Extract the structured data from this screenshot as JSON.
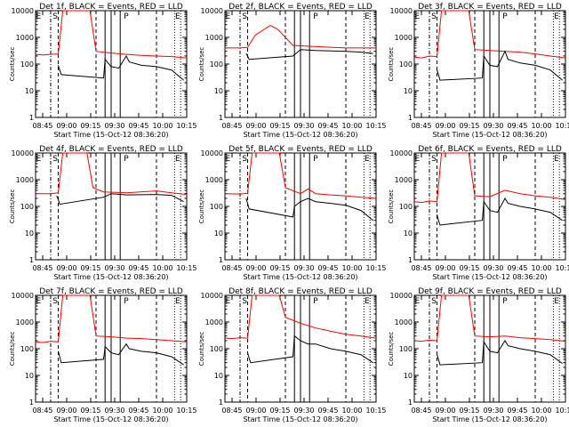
{
  "chart_data": {
    "type": "line",
    "yscale": "log",
    "ylim": [
      1,
      10000
    ],
    "ylabel": "Counts/sec",
    "xlabel": "Start Time (15-Oct-12 08:36:20)",
    "x_tick_labels": [
      "08:45",
      "09:00",
      "09:15",
      "09:30",
      "09:45",
      "10:00",
      "10:15"
    ],
    "y_tick_labels": [
      "1",
      "10",
      "100",
      "1000",
      "10000"
    ],
    "colors": {
      "events": "#000000",
      "lld": "#ff0000"
    },
    "panels": [
      {
        "title": "Det 1f, BLACK = Events, RED = LLD",
        "markers": {
          "S": "S",
          "P": "P",
          "E": "E"
        },
        "lld": [
          [
            0.0,
            230
          ],
          [
            0.05,
            220
          ],
          [
            0.1,
            230
          ],
          [
            0.15,
            240
          ],
          [
            0.18,
            10000
          ],
          [
            0.36,
            10000
          ],
          [
            0.4,
            300
          ],
          [
            0.5,
            260
          ],
          [
            0.6,
            230
          ],
          [
            0.7,
            210
          ],
          [
            0.8,
            200
          ],
          [
            0.9,
            190
          ],
          [
            1.0,
            170
          ]
        ],
        "events": [
          [
            0.15,
            90
          ],
          [
            0.16,
            60
          ],
          [
            0.17,
            40
          ],
          [
            0.45,
            30
          ],
          [
            0.46,
            150
          ],
          [
            0.5,
            80
          ],
          [
            0.55,
            70
          ],
          [
            0.6,
            200
          ],
          [
            0.62,
            120
          ],
          [
            0.7,
            90
          ],
          [
            0.8,
            80
          ],
          [
            0.9,
            60
          ],
          [
            0.98,
            25
          ]
        ]
      },
      {
        "title": "Det 2f, BLACK = Events, RED = LLD",
        "markers": {
          "S": "S",
          "P": "P",
          "E": "E"
        },
        "lld": [
          [
            0.0,
            400
          ],
          [
            0.1,
            400
          ],
          [
            0.15,
            420
          ],
          [
            0.2,
            1200
          ],
          [
            0.3,
            2800
          ],
          [
            0.35,
            2000
          ],
          [
            0.45,
            500
          ],
          [
            0.6,
            450
          ],
          [
            0.8,
            400
          ],
          [
            1.0,
            400
          ]
        ],
        "events": [
          [
            0.14,
            250
          ],
          [
            0.15,
            200
          ],
          [
            0.16,
            150
          ],
          [
            0.45,
            200
          ],
          [
            0.5,
            350
          ],
          [
            0.6,
            320
          ],
          [
            0.8,
            300
          ],
          [
            0.9,
            280
          ],
          [
            0.98,
            250
          ]
        ]
      },
      {
        "title": "Det 3f, BLACK = Events, RED = LLD",
        "markers": {
          "S": "S",
          "P": "P",
          "E": "E"
        },
        "lld": [
          [
            0.0,
            180
          ],
          [
            0.05,
            170
          ],
          [
            0.1,
            200
          ],
          [
            0.15,
            190
          ],
          [
            0.18,
            10000
          ],
          [
            0.36,
            10000
          ],
          [
            0.4,
            350
          ],
          [
            0.5,
            320
          ],
          [
            0.6,
            300
          ],
          [
            0.7,
            280
          ],
          [
            0.8,
            240
          ],
          [
            0.9,
            200
          ],
          [
            1.0,
            170
          ]
        ],
        "events": [
          [
            0.15,
            60
          ],
          [
            0.16,
            40
          ],
          [
            0.17,
            25
          ],
          [
            0.45,
            30
          ],
          [
            0.46,
            200
          ],
          [
            0.5,
            90
          ],
          [
            0.55,
            80
          ],
          [
            0.6,
            300
          ],
          [
            0.62,
            150
          ],
          [
            0.7,
            110
          ],
          [
            0.8,
            90
          ],
          [
            0.9,
            60
          ],
          [
            0.98,
            25
          ]
        ]
      },
      {
        "title": "Det 4f, BLACK = Events, RED = LLD",
        "markers": {
          "S": "S",
          "P": "P",
          "E": "E"
        },
        "lld": [
          [
            0.0,
            300
          ],
          [
            0.1,
            300
          ],
          [
            0.15,
            320
          ],
          [
            0.18,
            10000
          ],
          [
            0.34,
            10000
          ],
          [
            0.38,
            500
          ],
          [
            0.45,
            350
          ],
          [
            0.6,
            320
          ],
          [
            0.8,
            380
          ],
          [
            0.9,
            320
          ],
          [
            1.0,
            280
          ]
        ],
        "events": [
          [
            0.14,
            250
          ],
          [
            0.15,
            180
          ],
          [
            0.16,
            120
          ],
          [
            0.45,
            220
          ],
          [
            0.5,
            300
          ],
          [
            0.6,
            270
          ],
          [
            0.8,
            280
          ],
          [
            0.9,
            260
          ],
          [
            0.98,
            150
          ]
        ]
      },
      {
        "title": "Det 5f, BLACK = Events, RED = LLD",
        "markers": {
          "S": "S",
          "P": "P",
          "E": "E"
        },
        "lld": [
          [
            0.0,
            300
          ],
          [
            0.1,
            290
          ],
          [
            0.15,
            310
          ],
          [
            0.18,
            10000
          ],
          [
            0.36,
            10000
          ],
          [
            0.4,
            500
          ],
          [
            0.5,
            300
          ],
          [
            0.55,
            450
          ],
          [
            0.6,
            300
          ],
          [
            0.7,
            270
          ],
          [
            0.8,
            250
          ],
          [
            0.9,
            220
          ],
          [
            1.0,
            200
          ]
        ],
        "events": [
          [
            0.14,
            200
          ],
          [
            0.15,
            130
          ],
          [
            0.16,
            80
          ],
          [
            0.45,
            40
          ],
          [
            0.46,
            100
          ],
          [
            0.5,
            150
          ],
          [
            0.55,
            200
          ],
          [
            0.6,
            150
          ],
          [
            0.7,
            130
          ],
          [
            0.8,
            110
          ],
          [
            0.9,
            70
          ],
          [
            0.98,
            30
          ]
        ]
      },
      {
        "title": "Det 6f, BLACK = Events, RED = LLD",
        "markers": {
          "S": "S",
          "P": "P",
          "E": "E"
        },
        "lld": [
          [
            0.0,
            150
          ],
          [
            0.05,
            140
          ],
          [
            0.1,
            160
          ],
          [
            0.15,
            150
          ],
          [
            0.18,
            10000
          ],
          [
            0.36,
            10000
          ],
          [
            0.4,
            250
          ],
          [
            0.5,
            230
          ],
          [
            0.6,
            400
          ],
          [
            0.7,
            300
          ],
          [
            0.8,
            250
          ],
          [
            0.9,
            220
          ],
          [
            1.0,
            180
          ]
        ],
        "events": [
          [
            0.15,
            50
          ],
          [
            0.16,
            30
          ],
          [
            0.17,
            20
          ],
          [
            0.45,
            30
          ],
          [
            0.46,
            150
          ],
          [
            0.5,
            70
          ],
          [
            0.55,
            60
          ],
          [
            0.6,
            200
          ],
          [
            0.62,
            130
          ],
          [
            0.7,
            100
          ],
          [
            0.8,
            80
          ],
          [
            0.9,
            60
          ],
          [
            0.98,
            30
          ]
        ]
      },
      {
        "title": "Det 7f, BLACK = Events, RED = LLD",
        "markers": {
          "S": "S",
          "P": "P",
          "E": "E"
        },
        "lld": [
          [
            0.0,
            180
          ],
          [
            0.05,
            170
          ],
          [
            0.1,
            190
          ],
          [
            0.15,
            180
          ],
          [
            0.18,
            10000
          ],
          [
            0.36,
            10000
          ],
          [
            0.4,
            300
          ],
          [
            0.5,
            280
          ],
          [
            0.6,
            250
          ],
          [
            0.7,
            240
          ],
          [
            0.8,
            220
          ],
          [
            0.9,
            200
          ],
          [
            1.0,
            180
          ]
        ],
        "events": [
          [
            0.15,
            80
          ],
          [
            0.16,
            50
          ],
          [
            0.17,
            30
          ],
          [
            0.45,
            40
          ],
          [
            0.46,
            120
          ],
          [
            0.5,
            70
          ],
          [
            0.55,
            60
          ],
          [
            0.6,
            150
          ],
          [
            0.62,
            100
          ],
          [
            0.7,
            80
          ],
          [
            0.8,
            70
          ],
          [
            0.9,
            50
          ],
          [
            0.98,
            25
          ]
        ]
      },
      {
        "title": "Det 8f, BLACK = Events, RED = LLD",
        "markers": {
          "S": "S",
          "P": "P",
          "E": "E"
        },
        "lld": [
          [
            0.0,
            250
          ],
          [
            0.05,
            240
          ],
          [
            0.1,
            260
          ],
          [
            0.15,
            250
          ],
          [
            0.18,
            10000
          ],
          [
            0.36,
            10000
          ],
          [
            0.4,
            1500
          ],
          [
            0.5,
            900
          ],
          [
            0.6,
            600
          ],
          [
            0.7,
            450
          ],
          [
            0.8,
            350
          ],
          [
            0.9,
            300
          ],
          [
            1.0,
            250
          ]
        ],
        "events": [
          [
            0.15,
            70
          ],
          [
            0.16,
            45
          ],
          [
            0.17,
            30
          ],
          [
            0.45,
            50
          ],
          [
            0.46,
            300
          ],
          [
            0.5,
            200
          ],
          [
            0.55,
            150
          ],
          [
            0.6,
            150
          ],
          [
            0.7,
            100
          ],
          [
            0.8,
            80
          ],
          [
            0.9,
            60
          ],
          [
            0.98,
            30
          ]
        ]
      },
      {
        "title": "Det 9f, BLACK = Events, RED = LLD",
        "markers": {
          "S": "S",
          "P": "P",
          "E": "E"
        },
        "lld": [
          [
            0.0,
            200
          ],
          [
            0.05,
            190
          ],
          [
            0.1,
            210
          ],
          [
            0.15,
            200
          ],
          [
            0.18,
            10000
          ],
          [
            0.36,
            10000
          ],
          [
            0.4,
            300
          ],
          [
            0.5,
            280
          ],
          [
            0.6,
            300
          ],
          [
            0.7,
            260
          ],
          [
            0.8,
            240
          ],
          [
            0.9,
            220
          ],
          [
            1.0,
            190
          ]
        ],
        "events": [
          [
            0.15,
            60
          ],
          [
            0.16,
            40
          ],
          [
            0.17,
            25
          ],
          [
            0.45,
            30
          ],
          [
            0.46,
            180
          ],
          [
            0.5,
            80
          ],
          [
            0.55,
            70
          ],
          [
            0.6,
            200
          ],
          [
            0.62,
            130
          ],
          [
            0.7,
            100
          ],
          [
            0.8,
            80
          ],
          [
            0.9,
            60
          ],
          [
            0.98,
            28
          ]
        ]
      }
    ]
  }
}
